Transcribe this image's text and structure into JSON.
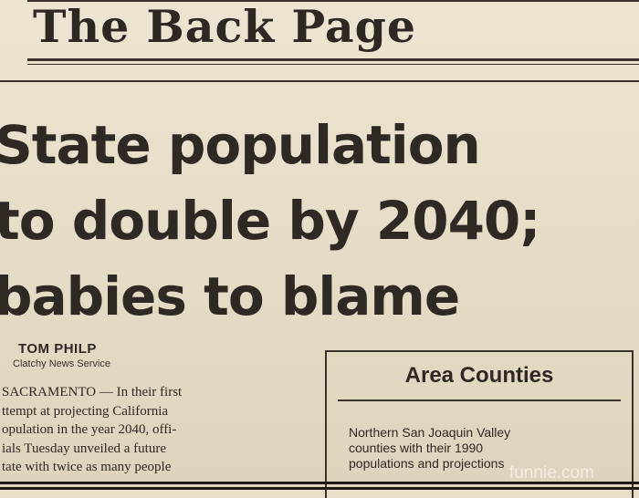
{
  "masthead": "The Back Page",
  "headline": {
    "line1": "State population",
    "line2": "to double by 2040;",
    "line3": "babies to blame"
  },
  "byline": {
    "author": "TOM PHILP",
    "service": "Clatchy News Service"
  },
  "article": {
    "lines": [
      "SACRAMENTO — In their first",
      "ttempt at projecting California",
      "opulation in the year 2040, offi-",
      "ials Tuesday unveiled a future",
      "tate with twice as many people"
    ]
  },
  "sidebar": {
    "title": "Area Counties",
    "lines": [
      "Northern San Joaquin Valley",
      "counties with their 1990",
      "populations and projections"
    ]
  },
  "watermark": "funnie.com",
  "colors": {
    "paper": "#e6dfc9",
    "ink": "#2e2822"
  }
}
